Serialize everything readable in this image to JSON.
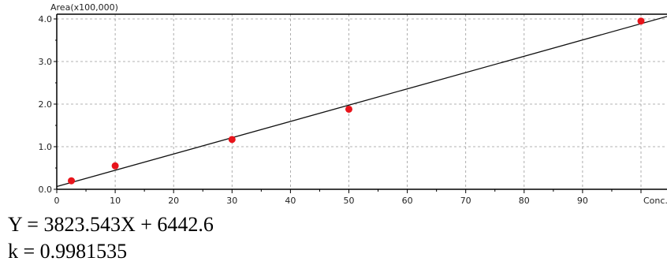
{
  "chart_data": {
    "type": "scatter",
    "ylabel": "Area(x100,000)",
    "xlabel": "Conc.",
    "xlim": [
      0,
      100
    ],
    "ylim": [
      0,
      4.0
    ],
    "x_ticks": [
      0,
      10,
      20,
      30,
      40,
      50,
      60,
      70,
      80,
      90
    ],
    "y_ticks": [
      0.0,
      1.0,
      2.0,
      3.0,
      4.0
    ],
    "y_tick_labels": [
      "0.0",
      "1.0",
      "2.0",
      "3.0",
      "4.0"
    ],
    "grid": true,
    "grid_style": "dashed",
    "series": [
      {
        "points": [
          {
            "x": 2.5,
            "y": 0.2
          },
          {
            "x": 10,
            "y": 0.55
          },
          {
            "x": 30,
            "y": 1.17
          },
          {
            "x": 50,
            "y": 1.88
          },
          {
            "x": 100,
            "y": 3.95
          }
        ],
        "color": "#e8141b"
      }
    ],
    "fit_line": {
      "slope": 0.03823543,
      "intercept": 0.064426,
      "color": "#111111"
    }
  },
  "equation": "Y = 3823.543X + 6442.6",
  "correlation": "k = 0.9981535"
}
